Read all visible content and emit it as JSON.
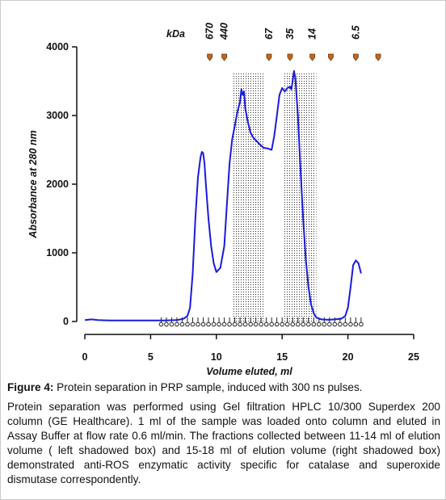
{
  "chart_data": {
    "type": "line",
    "xlabel": "Volume eluted, ml",
    "ylabel": "Absorbance at 280 nm",
    "xlim": [
      0,
      25
    ],
    "ylim": [
      0,
      4000
    ],
    "xticks": [
      0,
      5,
      10,
      15,
      20,
      25
    ],
    "yticks": [
      0,
      1000,
      2000,
      3000,
      4000
    ],
    "x_tick_labels": [
      "0",
      "5",
      "10",
      "15",
      "20",
      "25"
    ],
    "y_tick_labels": [
      "0",
      "1000",
      "2000",
      "3000",
      "4000"
    ],
    "grid": false,
    "line_color": "#1a1adb",
    "shaded_regions": [
      {
        "x_start": 11.2,
        "x_end": 13.7,
        "pattern": "dotted"
      },
      {
        "x_start": 15.1,
        "x_end": 17.6,
        "pattern": "dotted"
      }
    ],
    "marker_header": "kDa",
    "markers": [
      {
        "label": "670",
        "x": 9.5
      },
      {
        "label": "440",
        "x": 10.6
      },
      {
        "label": "67",
        "x": 14.0
      },
      {
        "label": "35",
        "x": 15.6
      },
      {
        "label": "14",
        "x": 17.3
      },
      {
        "label": "",
        "x": 18.7
      },
      {
        "label": "6.5",
        "x": 20.6
      },
      {
        "label": "",
        "x": 22.3
      }
    ],
    "fraction_markers_x": [
      5.8,
      6.2,
      6.6,
      7.0,
      7.4,
      7.8,
      8.2,
      8.6,
      9.0,
      9.4,
      9.8,
      10.2,
      10.6,
      11.0,
      11.4,
      11.8,
      12.2,
      12.6,
      13.0,
      13.4,
      13.8,
      14.2,
      14.6,
      15.0,
      15.4,
      15.8,
      16.2,
      16.6,
      17.0,
      17.4,
      17.8,
      18.2,
      18.6,
      19.0,
      19.4,
      19.8,
      20.2,
      20.6,
      21.0
    ],
    "series": [
      {
        "x": [
          0.0,
          0.5,
          1.0,
          2.0,
          3.0,
          4.0,
          5.0,
          6.0,
          7.0,
          7.5,
          7.8,
          8.0,
          8.2,
          8.4,
          8.6,
          8.8,
          8.9,
          9.0,
          9.1,
          9.2,
          9.4,
          9.6,
          9.8,
          10.0,
          10.3,
          10.6,
          10.8,
          11.0,
          11.2,
          11.4,
          11.6,
          11.8,
          11.9,
          12.0,
          12.1,
          12.2,
          12.4,
          12.6,
          12.8,
          13.0,
          13.3,
          13.6,
          13.9,
          14.2,
          14.4,
          14.6,
          14.8,
          15.0,
          15.2,
          15.4,
          15.6,
          15.7,
          15.8,
          15.9,
          16.0,
          16.2,
          16.4,
          16.6,
          16.8,
          17.0,
          17.2,
          17.4,
          17.6,
          17.8,
          18.0,
          18.5,
          19.0,
          19.5,
          19.8,
          20.0,
          20.2,
          20.4,
          20.6,
          20.8,
          21.0
        ],
        "y": [
          20,
          30,
          20,
          15,
          15,
          15,
          15,
          15,
          20,
          40,
          80,
          200,
          700,
          1500,
          2100,
          2400,
          2470,
          2450,
          2300,
          2000,
          1500,
          1100,
          850,
          720,
          780,
          1100,
          1700,
          2300,
          2650,
          2850,
          3050,
          3200,
          3380,
          3300,
          3350,
          3100,
          2900,
          2750,
          2680,
          2640,
          2580,
          2530,
          2520,
          2500,
          2700,
          3000,
          3300,
          3400,
          3350,
          3400,
          3420,
          3380,
          3500,
          3650,
          3550,
          3000,
          2200,
          1500,
          900,
          500,
          250,
          120,
          60,
          40,
          30,
          25,
          30,
          40,
          80,
          200,
          500,
          820,
          890,
          850,
          700
        ]
      }
    ]
  },
  "caption": {
    "figure_label": "Figure 4:",
    "title": " Protein separation in PRP sample, induced with 300 ns pulses.",
    "text": "Protein separation was performed using Gel filtration HPLC 10/300 Superdex 200 column (GE Healthcare). 1 ml of the sample was loaded onto column and eluted in Assay Buffer at flow rate 0.6 ml/min.  The fractions collected between 11-14 ml of elution volume ( left shadowed box)  and 15-18 ml of elution volume (right shadowed box) demonstrated anti-ROS enzymatic activity specific for catalase and superoxide dismutase correspondently."
  }
}
